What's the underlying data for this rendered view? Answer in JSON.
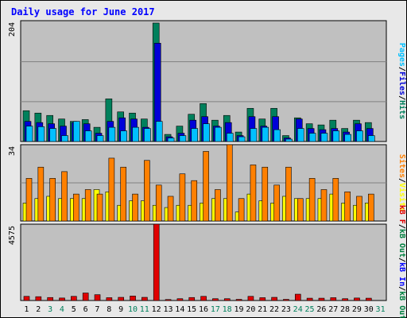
{
  "title": "Daily usage for June 2017",
  "colors": {
    "title": "#0000ff",
    "hits": "#00805c",
    "files": "#0000d8",
    "pages": "#00c0ff",
    "visits": "#ffff00",
    "sites": "#ff8000",
    "kbin": "#0000ff",
    "kbout": "#008040",
    "kbf": "#e00000",
    "weekday": "#000000",
    "weekend": "#00805c"
  },
  "chart_data": [
    {
      "type": "bar",
      "panel": "top",
      "y_max_label": "204",
      "ylim": [
        0,
        204
      ],
      "right_legend": [
        {
          "text": "Pages",
          "color": "#00c0ff"
        },
        {
          "text": "/",
          "color": "#000000"
        },
        {
          "text": "Files",
          "color": "#0000d8"
        },
        {
          "text": "/",
          "color": "#000000"
        },
        {
          "text": "Hits",
          "color": "#00805c"
        }
      ],
      "categories": [
        "1",
        "2",
        "3",
        "4",
        "5",
        "6",
        "7",
        "8",
        "9",
        "10",
        "11",
        "12",
        "13",
        "14",
        "15",
        "16",
        "17",
        "18",
        "19",
        "20",
        "21",
        "22",
        "23",
        "24",
        "25",
        "26",
        "27",
        "28",
        "29",
        "30",
        "31"
      ],
      "series": [
        {
          "name": "Hits",
          "values": [
            52,
            48,
            44,
            38,
            34,
            37,
            24,
            72,
            50,
            48,
            38,
            200,
            12,
            26,
            46,
            64,
            36,
            44,
            16,
            56,
            38,
            56,
            10,
            40,
            30,
            28,
            36,
            22,
            36,
            32,
            0
          ]
        },
        {
          "name": "Files",
          "values": [
            34,
            32,
            30,
            26,
            32,
            30,
            14,
            34,
            40,
            38,
            24,
            166,
            8,
            14,
            36,
            42,
            26,
            32,
            10,
            42,
            26,
            42,
            6,
            38,
            22,
            20,
            22,
            16,
            30,
            22,
            0
          ]
        },
        {
          "name": "Pages",
          "values": [
            26,
            25,
            22,
            10,
            34,
            18,
            10,
            24,
            18,
            24,
            22,
            34,
            6,
            10,
            22,
            30,
            24,
            14,
            8,
            22,
            24,
            20,
            4,
            22,
            14,
            14,
            18,
            12,
            18,
            10,
            0
          ]
        }
      ]
    },
    {
      "type": "bar",
      "panel": "middle",
      "y_max_label": "34",
      "ylim": [
        0,
        34
      ],
      "right_legend": [
        {
          "text": "Sites",
          "color": "#ff8000"
        },
        {
          "text": "/",
          "color": "#000000"
        },
        {
          "text": "Visits",
          "color": "#ffff00"
        }
      ],
      "categories": [
        "1",
        "2",
        "3",
        "4",
        "5",
        "6",
        "7",
        "8",
        "9",
        "10",
        "11",
        "12",
        "13",
        "14",
        "15",
        "16",
        "17",
        "18",
        "19",
        "20",
        "21",
        "22",
        "23",
        "24",
        "25",
        "26",
        "27",
        "28",
        "29",
        "30",
        "31"
      ],
      "series": [
        {
          "name": "Sites",
          "values": [
            19,
            24,
            19,
            22,
            12,
            14,
            12,
            28,
            24,
            12,
            27,
            16,
            11,
            21,
            18,
            31,
            14,
            34,
            10,
            25,
            24,
            16,
            24,
            10,
            19,
            14,
            19,
            13,
            11,
            12,
            0
          ]
        },
        {
          "name": "Visits",
          "values": [
            8,
            10,
            11,
            10,
            10,
            10,
            14,
            13,
            7,
            9,
            9,
            7,
            6,
            7,
            7,
            8,
            10,
            10,
            4,
            12,
            9,
            8,
            11,
            10,
            10,
            10,
            12,
            8,
            7,
            8,
            0
          ]
        }
      ]
    },
    {
      "type": "bar",
      "panel": "bottom",
      "y_max_label": "4575",
      "ylim": [
        0,
        4575
      ],
      "right_legend": [
        {
          "text": "kB F",
          "color": "#e00000"
        },
        {
          "text": "/",
          "color": "#000000"
        },
        {
          "text": "kB Out",
          "color": "#008040"
        },
        {
          "text": "/",
          "color": "#000000"
        },
        {
          "text": "kB In",
          "color": "#0000ff"
        },
        {
          "text": "/",
          "color": "#000000"
        },
        {
          "text": "kB Out",
          "color": "#008040"
        }
      ],
      "categories": [
        "1",
        "2",
        "3",
        "4",
        "5",
        "6",
        "7",
        "8",
        "9",
        "10",
        "11",
        "12",
        "13",
        "14",
        "15",
        "16",
        "17",
        "18",
        "19",
        "20",
        "21",
        "22",
        "23",
        "24",
        "25",
        "26",
        "27",
        "28",
        "29",
        "30",
        "31"
      ],
      "series": [
        {
          "name": "kB F",
          "values": [
            250,
            230,
            180,
            150,
            250,
            450,
            350,
            170,
            190,
            270,
            190,
            4575,
            60,
            110,
            180,
            250,
            110,
            110,
            70,
            250,
            170,
            190,
            70,
            380,
            140,
            140,
            170,
            110,
            150,
            140,
            0
          ]
        }
      ]
    }
  ],
  "x_labels": [
    {
      "text": "1",
      "weekend": false
    },
    {
      "text": "2",
      "weekend": false
    },
    {
      "text": "3",
      "weekend": true
    },
    {
      "text": "4",
      "weekend": true
    },
    {
      "text": "5",
      "weekend": false
    },
    {
      "text": "6",
      "weekend": false
    },
    {
      "text": "7",
      "weekend": false
    },
    {
      "text": "8",
      "weekend": false
    },
    {
      "text": "9",
      "weekend": false
    },
    {
      "text": "10",
      "weekend": true
    },
    {
      "text": "11",
      "weekend": true
    },
    {
      "text": "12",
      "weekend": false
    },
    {
      "text": "13",
      "weekend": false
    },
    {
      "text": "14",
      "weekend": false
    },
    {
      "text": "15",
      "weekend": false
    },
    {
      "text": "16",
      "weekend": false
    },
    {
      "text": "17",
      "weekend": true
    },
    {
      "text": "18",
      "weekend": true
    },
    {
      "text": "19",
      "weekend": false
    },
    {
      "text": "20",
      "weekend": false
    },
    {
      "text": "21",
      "weekend": false
    },
    {
      "text": "22",
      "weekend": false
    },
    {
      "text": "23",
      "weekend": false
    },
    {
      "text": "24",
      "weekend": true
    },
    {
      "text": "25",
      "weekend": true
    },
    {
      "text": "26",
      "weekend": false
    },
    {
      "text": "27",
      "weekend": false
    },
    {
      "text": "28",
      "weekend": false
    },
    {
      "text": "29",
      "weekend": false
    },
    {
      "text": "30",
      "weekend": false
    },
    {
      "text": "31",
      "weekend": true
    }
  ]
}
